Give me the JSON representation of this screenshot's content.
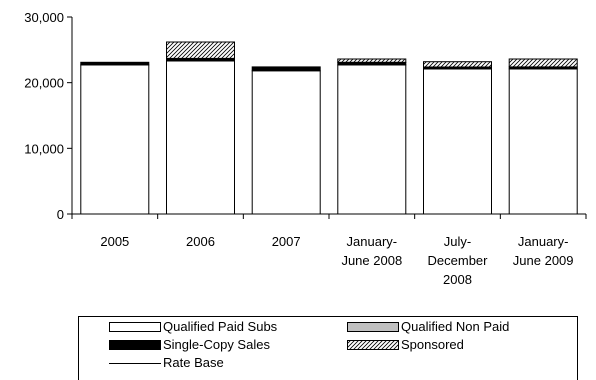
{
  "chart_data": {
    "type": "bar",
    "stacked": true,
    "categories": [
      [
        "2005"
      ],
      [
        "2006"
      ],
      [
        "2007"
      ],
      [
        "January-",
        "June 2008"
      ],
      [
        "July-",
        "December",
        "2008"
      ],
      [
        "January-",
        "June 2009"
      ]
    ],
    "series": [
      {
        "name": "Qualified Paid Subs",
        "values": [
          22700,
          23300,
          21800,
          22700,
          22100,
          22100
        ],
        "fill": "#ffffff"
      },
      {
        "name": "Qualified Non Paid",
        "values": [
          0,
          0,
          0,
          0,
          0,
          0
        ],
        "fill": "#c0c0c0"
      },
      {
        "name": "Single-Copy Sales",
        "values": [
          400,
          400,
          600,
          400,
          300,
          300
        ],
        "fill": "#000000"
      },
      {
        "name": "Sponsored",
        "values": [
          0,
          2500,
          0,
          500,
          800,
          1200
        ],
        "fill": "hatch"
      }
    ],
    "rate_base": {
      "name": "Rate Base",
      "values": []
    },
    "y_ticks": [
      "0",
      "10,000",
      "20,000",
      "30,000"
    ],
    "y_tick_values": [
      0,
      10000,
      20000,
      30000
    ],
    "ylim": [
      0,
      30000
    ],
    "grid": false,
    "legend_position": "bottom",
    "title": "",
    "xlabel": "",
    "ylabel": ""
  },
  "legend": {
    "qualified_paid": "Qualified Paid Subs",
    "qualified_non_paid": "Qualified Non Paid",
    "single_copy": "Single-Copy Sales",
    "sponsored": "Sponsored",
    "rate_base": "Rate Base"
  }
}
